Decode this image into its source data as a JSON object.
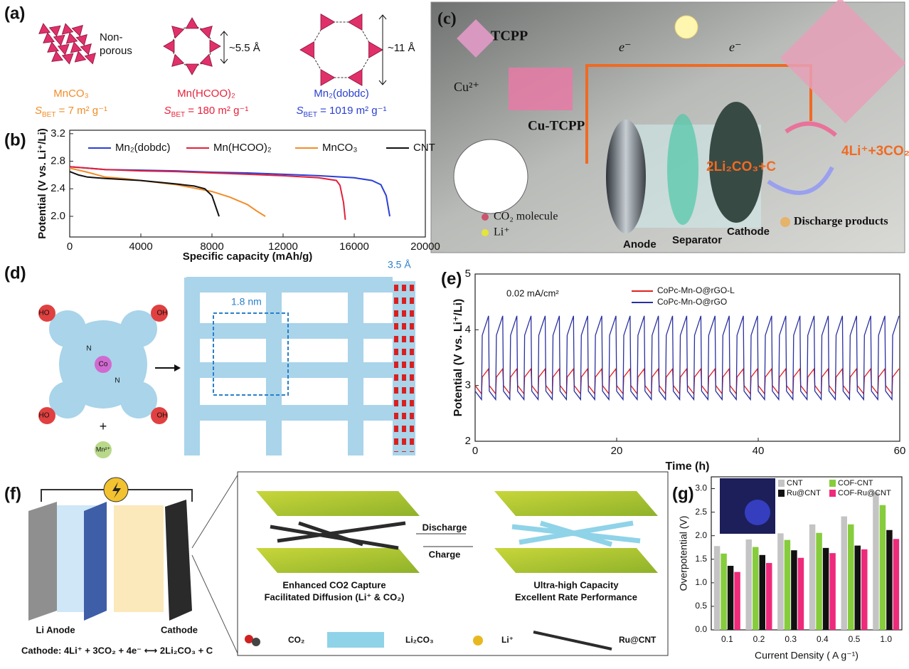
{
  "panel_labels": [
    "(a)",
    "(b)",
    "(c)",
    "(d)",
    "(e)",
    "(f)",
    "(g)"
  ],
  "panel_a": {
    "sbet_symbol": "S",
    "sbet_subscript": "BET",
    "materials": [
      {
        "name": "MnCO₃",
        "note": [
          "Non-",
          "porous"
        ],
        "sbet": " = 7 m² g⁻¹",
        "color": "#f28c28"
      },
      {
        "name": "Mn(HCOO)₂",
        "note": [
          "~5.5 Å"
        ],
        "sbet": " = 180 m² g⁻¹",
        "color": "#e8213a"
      },
      {
        "name": "Mn₂(dobdc)",
        "note": [
          "~11 Å"
        ],
        "sbet": " = 1019 m² g⁻¹",
        "color": "#2a3fd0"
      }
    ]
  },
  "panel_c": {
    "tcpp": "TCPP",
    "cu_ion": "Cu²⁺",
    "cu_tcpp": "Cu-TCPP",
    "electron": "e⁻",
    "discharge_product": "2Li₂CO₃+C",
    "reactants": "4Li⁺+3CO₂",
    "legend": [
      "CO₂ molecule",
      "Li⁺",
      "Discharge products"
    ],
    "components": [
      "Anode",
      "Separator",
      "Cathode"
    ]
  },
  "panel_d": {
    "hydroxyl_left": "HO",
    "hydroxyl_right": "OH",
    "nitrogen": "N",
    "cobalt": "Co",
    "plus": "+",
    "manganese": "Mn²⁺",
    "pore": "1.8 nm",
    "stacking": "3.5 Å"
  },
  "panel_f": {
    "anode": "Li Anode",
    "cathode": "Cathode",
    "reaction": "Cathode: 4Li⁺ + 3CO₂ + 4e⁻ ⟷ 2Li₂CO₃ + C",
    "discharge": "Discharge",
    "charge": "Charge",
    "left_caption": [
      "Enhanced CO2 Capture",
      "Facilitated Diffusion (Li⁺ & CO₂)"
    ],
    "right_caption": [
      "Ultra-high Capacity",
      "Excellent Rate Performance"
    ],
    "legend": [
      "CO₂",
      "Li₂CO₃",
      "Li⁺",
      "Ru@CNT"
    ]
  },
  "chart_data": [
    {
      "type": "line",
      "xlabel": "Specific capacity (mAh/g)",
      "ylabel": "Potential (V vs. Li⁺/Li)",
      "xlim": [
        0,
        20000
      ],
      "xticks": [
        0,
        4000,
        8000,
        12000,
        16000,
        20000
      ],
      "ylim": [
        1.7,
        3.25
      ],
      "yticks": [
        {
          "value": 2.0,
          "label": "2.0"
        },
        2.4,
        2.8,
        3.2
      ],
      "series": [
        {
          "name": "Mn₂(dobdc)",
          "color": "#2b3fd6",
          "x": [
            0,
            2000,
            4000,
            6000,
            8000,
            10000,
            12000,
            14000,
            16000,
            17000,
            17500,
            17800,
            18000
          ],
          "values": [
            2.72,
            2.68,
            2.67,
            2.66,
            2.64,
            2.63,
            2.61,
            2.59,
            2.56,
            2.52,
            2.46,
            2.3,
            2.0
          ]
        },
        {
          "name": "Mn(HCOO)₂",
          "color": "#e3203a",
          "x": [
            0,
            2000,
            4000,
            6000,
            8000,
            10000,
            12000,
            14000,
            15000,
            15200,
            15400,
            15500
          ],
          "values": [
            2.72,
            2.68,
            2.66,
            2.65,
            2.63,
            2.61,
            2.59,
            2.56,
            2.52,
            2.45,
            2.2,
            1.95
          ]
        },
        {
          "name": "MnCO₃",
          "color": "#f28c28",
          "x": [
            0,
            1000,
            2000,
            3000,
            4000,
            6000,
            8000,
            9000,
            10000,
            10500,
            11000
          ],
          "values": [
            2.7,
            2.64,
            2.57,
            2.55,
            2.52,
            2.46,
            2.36,
            2.28,
            2.17,
            2.08,
            2.0
          ]
        },
        {
          "name": "CNT",
          "color": "#111111",
          "x": [
            0,
            500,
            1000,
            2000,
            4000,
            6000,
            7000,
            7600,
            8000,
            8200,
            8400
          ],
          "values": [
            2.65,
            2.6,
            2.57,
            2.55,
            2.52,
            2.47,
            2.44,
            2.4,
            2.3,
            2.15,
            2.0
          ]
        }
      ]
    },
    {
      "type": "line",
      "annotation": "0.02 mA/cm²",
      "xlabel": "Time (h)",
      "ylabel": "Potential (V vs. Li⁺/Li)",
      "xlim": [
        0,
        60
      ],
      "xticks": [
        0,
        20,
        40,
        60
      ],
      "ylim": [
        2,
        5
      ],
      "yticks": [
        2,
        3,
        4,
        5
      ],
      "x": [
        0,
        0.9,
        1,
        1.9,
        2,
        2.9,
        3,
        3.9,
        4,
        4.9,
        5,
        5.9,
        6,
        6.9,
        7,
        7.9,
        8,
        8.9,
        9,
        9.9,
        10,
        10.9,
        11,
        11.9,
        12,
        12.9,
        13,
        13.9,
        14,
        14.9,
        15,
        15.9,
        16,
        16.9,
        17,
        17.9,
        18,
        18.9,
        19,
        19.9,
        20,
        20.9,
        21,
        21.9,
        22,
        22.9,
        23,
        23.9,
        24,
        24.9,
        25,
        25.9,
        26,
        26.9,
        27,
        27.9,
        28,
        28.9,
        29,
        29.9,
        30,
        30.9,
        31,
        31.9,
        32,
        32.9,
        33,
        33.9,
        34,
        34.9,
        35,
        35.9,
        36,
        36.9,
        37,
        37.9,
        38,
        38.9,
        39,
        39.9,
        40,
        40.9,
        41,
        41.9,
        42,
        42.9,
        43,
        43.9,
        44,
        44.9,
        45,
        45.9,
        46,
        46.9,
        47,
        47.9,
        48,
        48.9,
        49,
        49.9,
        50,
        50.9,
        51,
        51.9,
        52,
        52.9,
        53,
        53.9,
        54,
        54.9,
        55,
        55.9,
        56,
        56.9,
        57,
        57.9,
        58,
        58.9,
        59,
        59.9
      ],
      "series": [
        {
          "name": "CoPc-Mn-O@rGO-L",
          "color": "#e02020",
          "values": [
            3,
            2.85,
            3.15,
            3.3,
            3,
            2.85,
            3.15,
            3.3,
            3,
            2.85,
            3.15,
            3.3,
            3,
            2.85,
            3.15,
            3.3,
            3,
            2.85,
            3.15,
            3.3,
            3,
            2.85,
            3.15,
            3.3,
            3,
            2.85,
            3.15,
            3.3,
            3,
            2.85,
            3.15,
            3.3,
            3,
            2.85,
            3.15,
            3.3,
            3,
            2.85,
            3.15,
            3.3,
            3,
            2.85,
            3.15,
            3.3,
            3,
            2.85,
            3.15,
            3.3,
            3,
            2.85,
            3.15,
            3.3,
            3,
            2.85,
            3.15,
            3.3,
            3,
            2.85,
            3.15,
            3.3,
            3,
            2.85,
            3.15,
            3.3,
            3,
            2.85,
            3.15,
            3.3,
            3,
            2.85,
            3.15,
            3.3,
            3,
            2.85,
            3.15,
            3.3,
            3,
            2.85,
            3.15,
            3.3,
            3,
            2.85,
            3.15,
            3.3,
            3,
            2.85,
            3.15,
            3.3,
            3,
            2.85,
            3.15,
            3.3,
            3,
            2.85,
            3.15,
            3.3,
            3,
            2.85,
            3.15,
            3.3,
            3,
            2.85,
            3.15,
            3.3,
            3,
            2.85,
            3.15,
            3.3,
            3,
            2.85,
            3.15,
            3.3,
            3,
            2.85,
            3.15,
            3.3,
            3,
            2.85,
            3.15,
            3.3
          ]
        },
        {
          "name": "CoPc-Mn-O@rGO",
          "color": "#2a2fa0",
          "values": [
            2.9,
            2.75,
            3.9,
            4.25,
            2.9,
            2.75,
            3.9,
            4.25,
            2.9,
            2.75,
            3.9,
            4.25,
            2.9,
            2.75,
            3.9,
            4.25,
            2.9,
            2.75,
            3.9,
            4.25,
            2.9,
            2.75,
            3.9,
            4.25,
            2.9,
            2.75,
            3.9,
            4.25,
            2.9,
            2.75,
            3.9,
            4.25,
            2.9,
            2.75,
            3.9,
            4.25,
            2.9,
            2.75,
            3.9,
            4.25,
            2.9,
            2.75,
            3.9,
            4.25,
            2.9,
            2.75,
            3.9,
            4.25,
            2.9,
            2.75,
            3.9,
            4.25,
            2.9,
            2.75,
            3.9,
            4.25,
            2.9,
            2.75,
            3.9,
            4.25,
            2.9,
            2.75,
            3.9,
            4.25,
            2.9,
            2.75,
            3.9,
            4.25,
            2.9,
            2.75,
            3.9,
            4.25,
            2.9,
            2.75,
            3.9,
            4.25,
            2.9,
            2.75,
            3.9,
            4.25,
            2.9,
            2.75,
            3.9,
            4.25,
            2.9,
            2.75,
            3.9,
            4.25,
            2.9,
            2.75,
            3.9,
            4.25,
            2.9,
            2.75,
            3.9,
            4.25,
            2.9,
            2.75,
            3.9,
            4.25,
            2.9,
            2.75,
            3.9,
            4.25,
            2.9,
            2.75,
            3.9,
            4.25,
            2.9,
            2.75,
            3.9,
            4.25,
            2.9,
            2.75,
            3.9,
            4.25,
            2.9,
            2.75,
            3.9,
            4.25
          ]
        }
      ]
    },
    {
      "type": "bar",
      "xlabel": "Current Density ( A g⁻¹)",
      "ylabel": "Overpotential (V)",
      "categories": [
        "0.1",
        "0.2",
        "0.3",
        "0.4",
        "0.5",
        "1.0"
      ],
      "ylim": [
        0,
        3.25
      ],
      "yticks": [
        {
          "value": 0,
          "label": "0.0"
        },
        0.5,
        {
          "value": 1,
          "label": "1.0"
        },
        1.5,
        {
          "value": 2,
          "label": "2.0"
        },
        2.5,
        {
          "value": 3,
          "label": "3.0"
        }
      ],
      "series": [
        {
          "name": "CNT",
          "color": "#c4c4c4",
          "values": [
            1.78,
            1.92,
            2.05,
            2.24,
            2.41,
            2.92
          ]
        },
        {
          "name": "COF-CNT",
          "color": "#86cc3c",
          "values": [
            1.62,
            1.76,
            1.91,
            2.06,
            2.24,
            2.65
          ]
        },
        {
          "name": "Ru@CNT",
          "color": "#111111",
          "values": [
            1.36,
            1.59,
            1.69,
            1.74,
            1.79,
            2.12
          ]
        },
        {
          "name": "COF-Ru@CNT",
          "color": "#ee2a7b",
          "values": [
            1.23,
            1.42,
            1.53,
            1.63,
            1.71,
            1.93
          ]
        }
      ]
    }
  ]
}
